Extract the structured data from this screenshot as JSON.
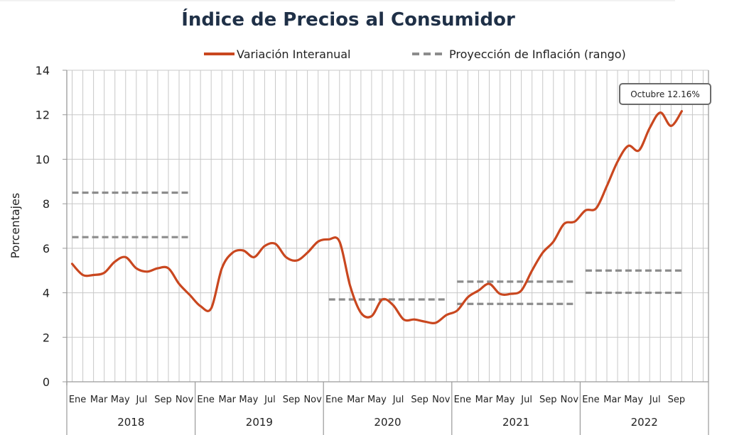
{
  "chart_data": {
    "type": "line",
    "title": "Índice de Precios al Consumidor",
    "ylabel": "Porcentajes",
    "ylim": [
      0,
      14
    ],
    "yticks": [
      0,
      2,
      4,
      6,
      8,
      10,
      12,
      14
    ],
    "grid": true,
    "legend_position": "top",
    "month_labels": [
      "Ene",
      "Mar",
      "May",
      "Jul",
      "Sep",
      "Nov"
    ],
    "years": [
      "2018",
      "2019",
      "2020",
      "2021",
      "2022"
    ],
    "series": [
      {
        "name": "Variación Interanual",
        "color": "#c9471f",
        "style": "solid",
        "values": [
          5.3,
          4.8,
          4.8,
          4.9,
          5.4,
          5.6,
          5.1,
          4.95,
          5.1,
          5.1,
          4.4,
          3.9,
          3.4,
          3.3,
          5.1,
          5.8,
          5.9,
          5.6,
          6.1,
          6.2,
          5.6,
          5.45,
          5.8,
          6.3,
          6.4,
          6.3,
          4.3,
          3.1,
          2.95,
          3.7,
          3.45,
          2.8,
          2.8,
          2.7,
          2.65,
          3.0,
          3.2,
          3.8,
          4.1,
          4.4,
          3.95,
          3.95,
          4.1,
          5.0,
          5.8,
          6.3,
          7.1,
          7.2,
          7.7,
          7.8,
          8.8,
          9.9,
          10.6,
          10.4,
          11.4,
          12.1,
          11.5,
          12.16
        ]
      },
      {
        "name": "Proyección de Inflación (rango)",
        "color": "#8c8c8c",
        "style": "dashed",
        "segments": [
          {
            "start": 1,
            "end": 12,
            "y": 8.5
          },
          {
            "start": 1,
            "end": 12,
            "y": 6.5
          },
          {
            "start": 25,
            "end": 36,
            "y": 3.7
          },
          {
            "start": 37,
            "end": 48,
            "y": 4.5
          },
          {
            "start": 37,
            "end": 48,
            "y": 3.5
          },
          {
            "start": 49,
            "end": 58,
            "y": 5.0
          },
          {
            "start": 49,
            "end": 58,
            "y": 4.0
          }
        ]
      }
    ],
    "annotations": [
      {
        "text": "Octubre 12.16%",
        "x": 58,
        "y": 12.16
      }
    ]
  }
}
